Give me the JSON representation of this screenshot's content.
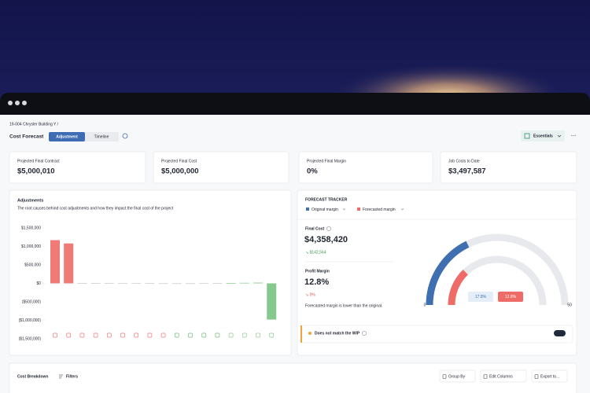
{
  "breadcrumb": "19-004 Chrysler Building Y /",
  "header": {
    "title": "Cost Forecast",
    "tabs": [
      "Adjustment",
      "Timeline"
    ],
    "view_button": "Essentials"
  },
  "summary_cards": [
    {
      "label": "Projected Final Contract",
      "value": "$5,000,010"
    },
    {
      "label": "Projected Final Cost",
      "value": "$5,000,000"
    },
    {
      "label": "Projected Final Margin",
      "value": "0%"
    },
    {
      "label": "Job Costs to Date",
      "value": "$3,497,587"
    }
  ],
  "adjustments": {
    "title": "Adjustments",
    "subtitle": "The root causes behind cost adjustments and how they impact the final cost of the project",
    "chart": {
      "type": "bar",
      "values": [
        1170000,
        1080000,
        10000,
        8000,
        6000,
        5000,
        5000,
        5000,
        3000,
        3000,
        3000,
        5000,
        8000,
        10000,
        15000,
        20000,
        -980000
      ],
      "colors": [
        "#ef7a76",
        "#ef7a76",
        "#c9ccd2",
        "#c9ccd2",
        "#c9ccd2",
        "#c9ccd2",
        "#c9ccd2",
        "#c9ccd2",
        "#c9ccd2",
        "#c9ccd2",
        "#c9ccd2",
        "#c9ccd2",
        "#c9ccd2",
        "#8fce95",
        "#8fce95",
        "#8fce95",
        "#86c98c"
      ],
      "ylim": [
        -1500000,
        1500000
      ],
      "yticks": [
        {
          "value": 1500000,
          "label": "$1,500,000"
        },
        {
          "value": 1000000,
          "label": "$1,000,000"
        },
        {
          "value": 500000,
          "label": "$500,000"
        },
        {
          "value": 0,
          "label": "$0"
        },
        {
          "value": -500000,
          "label": "($500,000)"
        },
        {
          "value": -1000000,
          "label": "($1,000,000)"
        },
        {
          "value": -1500000,
          "label": "($1,500,000)"
        }
      ]
    }
  },
  "forecast_tracker": {
    "title": "FORECAST TRACKER",
    "legend": [
      {
        "name": "Original margin",
        "color": "#3f6fb0"
      },
      {
        "name": "Forecasted margin",
        "color": "#ee6b67"
      }
    ],
    "final_cost": {
      "label": "Final Cost",
      "value": "$4,358,420",
      "change": "↘ $142,564"
    },
    "profit_margin": {
      "label": "Profit Margin",
      "value": "12.8%",
      "change": "↘ 0%"
    },
    "note": "Forecasted margin is lower than the original.",
    "gauge": {
      "min": 0,
      "max": 50,
      "values": [
        17.8,
        12.8
      ],
      "value_labels": [
        "17.8%",
        "12.8%"
      ]
    },
    "warning": "Does not match the WIP"
  },
  "cost_breakdown": {
    "title": "Cost Breakdown",
    "filters": "Filters",
    "actions": [
      "Group By",
      "Edit Columns",
      "Export to..."
    ]
  }
}
